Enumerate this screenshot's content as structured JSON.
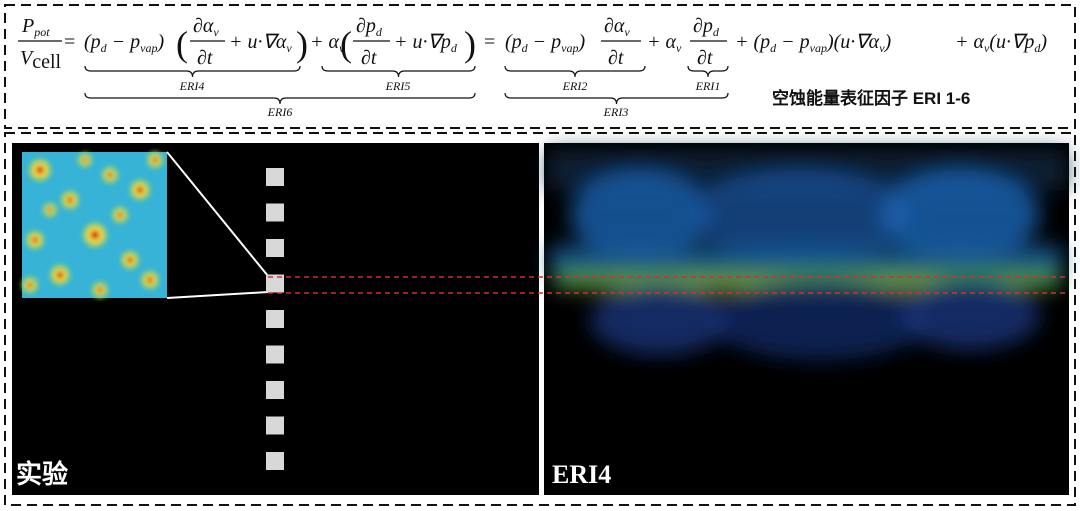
{
  "equation": {
    "lhs_num": [
      "P",
      "pot"
    ],
    "lhs_den": [
      "V",
      "cell"
    ],
    "eq1": "=",
    "t1": [
      "(p",
      "d",
      " − p",
      "vap",
      ")"
    ],
    "t2_open": "(",
    "t2_num": [
      "∂α",
      "v"
    ],
    "t2_den": "∂t",
    "t2_rest": [
      "+ u·∇α",
      "v"
    ],
    "t2_close": ")",
    "t3": [
      "+ α",
      "v"
    ],
    "t4_open": "(",
    "t4_num": [
      "∂p",
      "d"
    ],
    "t4_den": "∂t",
    "t4_rest": [
      "+ u·∇p",
      "d"
    ],
    "t4_close": ")",
    "eq2": "=",
    "t5": [
      "(p",
      "d",
      " − p",
      "vap",
      ")"
    ],
    "t6_num": [
      "∂α",
      "v"
    ],
    "t6_den": "∂t",
    "t7": [
      "+ α",
      "v"
    ],
    "t8_num": [
      "∂p",
      "d"
    ],
    "t8_den": "∂t",
    "t9": [
      "+ (p",
      "d",
      " − p",
      "vap",
      ")(u·∇α",
      "v",
      ")"
    ],
    "t10": [
      "+ α",
      "v",
      "(u·∇p",
      "d",
      ")"
    ]
  },
  "braces": {
    "eri4": "ERI4",
    "eri5": "ERI5",
    "eri6": "ERI6",
    "eri2": "ERI2",
    "eri1": "ERI1",
    "eri3": "ERI3"
  },
  "caption": "空蚀能量表征因子 ERI 1-6",
  "panels": {
    "left_label": "实验",
    "right_label": "ERI4"
  }
}
